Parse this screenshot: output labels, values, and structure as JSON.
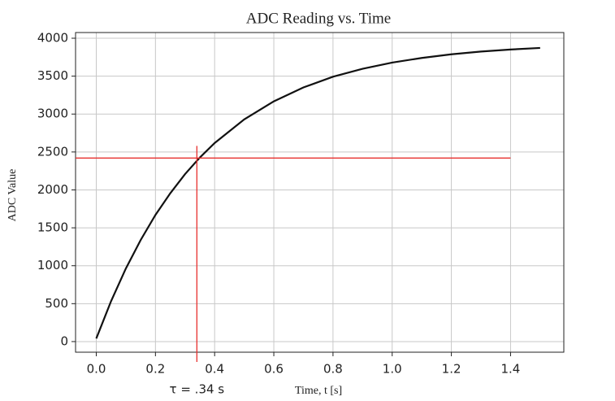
{
  "chart_data": {
    "type": "line",
    "title": "ADC Reading vs. Time",
    "x_label": "Time, t [s]",
    "y_label": "ADC Value",
    "x": [
      0,
      0.05,
      0.1,
      0.15,
      0.2,
      0.25,
      0.3,
      0.35,
      0.4,
      0.5,
      0.6,
      0.7,
      0.8,
      0.9,
      1.0,
      1.1,
      1.2,
      1.3,
      1.4,
      1.5
    ],
    "series": [
      {
        "color": "#111111",
        "values": [
          40,
          533,
          964,
          1339,
          1670,
          1955,
          2208,
          2427,
          2618,
          2930,
          3168,
          3351,
          3492,
          3597,
          3679,
          3740,
          3788,
          3824,
          3851,
          3872
        ]
      }
    ],
    "xlim": [
      -0.07,
      1.58
    ],
    "ylim": [
      -140,
      4075
    ],
    "xticks": [
      {
        "value": 0,
        "label": "0.0"
      },
      0.2,
      0.4,
      0.6,
      0.8,
      {
        "value": 1,
        "label": "1.0"
      },
      1.2,
      1.4
    ],
    "yticks": [
      0,
      500,
      1000,
      1500,
      2000,
      2500,
      3000,
      3500,
      4000
    ],
    "grid": true,
    "annotation": {
      "text": "τ = .34 s",
      "x": 0.34,
      "y": 2420,
      "hline_end": 1.4,
      "vline_top": 2580,
      "color": "#e8312f"
    }
  }
}
